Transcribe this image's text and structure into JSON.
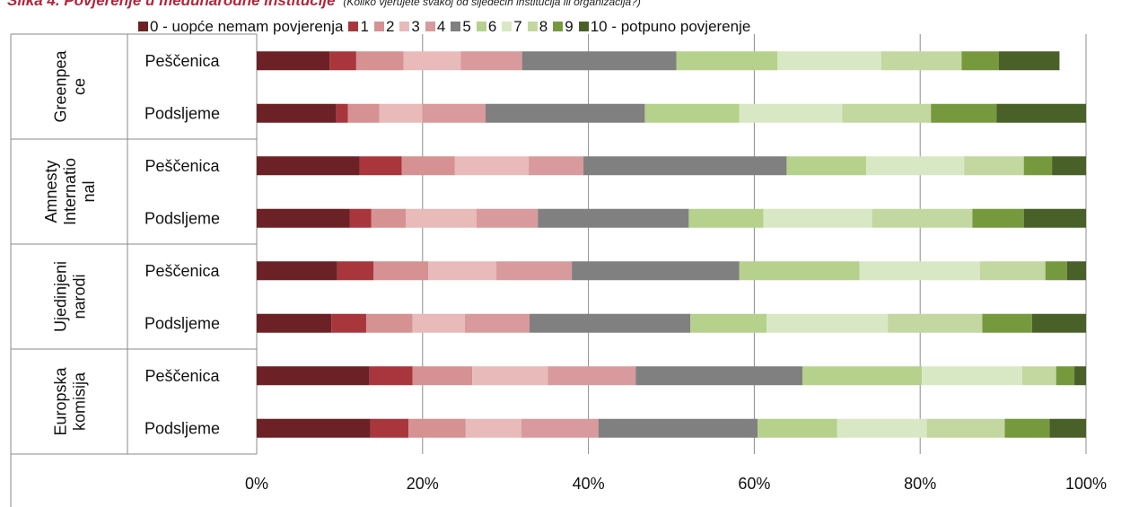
{
  "title": "Slika 4. Povjerenje u međunarodne institucije",
  "subtitle": "(Koliko vjerujete svakoj od sljedećih institucija ili organizacija?)",
  "chart_data": {
    "type": "bar",
    "orientation": "horizontal",
    "stacked": "percent",
    "groups": [
      {
        "name": "Greenpeace",
        "label_lines": [
          "Greenpea",
          "ce"
        ]
      },
      {
        "name": "Amnesty International",
        "label_lines": [
          "Amnesty",
          "Internatio",
          "nal"
        ]
      },
      {
        "name": "Ujedinjeni narodi",
        "label_lines": [
          "Ujedinjeni",
          "narodi"
        ]
      },
      {
        "name": "Europska komisija",
        "label_lines": [
          "Europska",
          "komisija"
        ]
      }
    ],
    "rows": [
      {
        "group": 0,
        "label": "Peščenica",
        "values": [
          8.8,
          3.2,
          5.7,
          6.9,
          7.4,
          18.6,
          12.2,
          12.5,
          9.7,
          4.5,
          7.3
        ]
      },
      {
        "group": 0,
        "label": "Podsljeme",
        "values": [
          9.6,
          1.4,
          3.8,
          5.2,
          7.6,
          19.2,
          11.4,
          12.4,
          10.7,
          7.9,
          10.8
        ]
      },
      {
        "group": 1,
        "label": "Peščenica",
        "values": [
          12.4,
          5.1,
          6.4,
          8.9,
          6.6,
          24.5,
          9.6,
          11.8,
          7.2,
          3.4,
          4.1
        ]
      },
      {
        "group": 1,
        "label": "Podsljeme",
        "values": [
          11.2,
          2.6,
          4.2,
          8.5,
          7.4,
          18.2,
          9.0,
          13.1,
          12.1,
          6.2,
          7.5
        ]
      },
      {
        "group": 2,
        "label": "Peščenica",
        "values": [
          9.7,
          4.4,
          6.6,
          8.2,
          9.1,
          20.2,
          14.5,
          14.5,
          7.9,
          2.6,
          2.3
        ]
      },
      {
        "group": 2,
        "label": "Podsljeme",
        "values": [
          9.0,
          4.2,
          5.6,
          6.3,
          7.8,
          19.4,
          9.2,
          14.6,
          11.4,
          6.0,
          6.5
        ]
      },
      {
        "group": 3,
        "label": "Peščenica",
        "values": [
          13.6,
          5.2,
          7.2,
          9.1,
          10.6,
          20.1,
          14.4,
          12.1,
          4.1,
          2.2,
          1.4
        ]
      },
      {
        "group": 3,
        "label": "Podsljeme",
        "values": [
          13.7,
          4.6,
          6.9,
          6.7,
          9.3,
          19.2,
          9.6,
          10.8,
          9.4,
          5.4,
          4.4
        ]
      }
    ],
    "series": [
      {
        "name": "0 - uopće nemam povjerenja",
        "color": "#6b2125"
      },
      {
        "name": "1",
        "color": "#a8363c"
      },
      {
        "name": "2",
        "color": "#d69192"
      },
      {
        "name": "3",
        "color": "#e8baba"
      },
      {
        "name": "4",
        "color": "#d89a9c"
      },
      {
        "name": "5",
        "color": "#808080"
      },
      {
        "name": "6",
        "color": "#b5d18c"
      },
      {
        "name": "7",
        "color": "#d9e8c4"
      },
      {
        "name": "8",
        "color": "#c3d7a0"
      },
      {
        "name": "9",
        "color": "#77993e"
      },
      {
        "name": "10 - potpuno povjerenje",
        "color": "#4a6029"
      }
    ],
    "x_ticks": [
      "0%",
      "20%",
      "40%",
      "60%",
      "80%",
      "100%"
    ],
    "xlim": [
      0,
      100
    ],
    "grid": true,
    "legend_position": "top"
  }
}
